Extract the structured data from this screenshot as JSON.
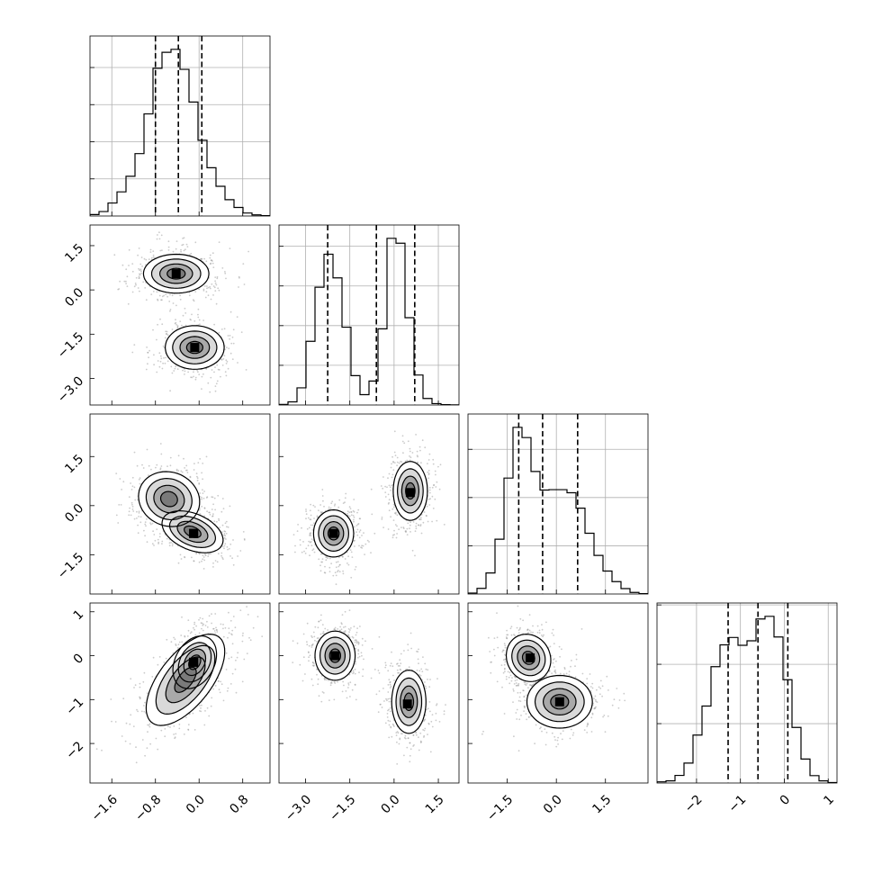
{
  "chart_data": {
    "type": "corner",
    "n_params": 4,
    "quantiles_shown": [
      0.16,
      0.5,
      0.84
    ],
    "grid": true,
    "params": [
      {
        "index": 0,
        "range": [
          -2.0,
          1.3
        ],
        "ticks": [
          -1.6,
          -0.8,
          0.0,
          0.8
        ],
        "tick_labels": [
          "−1.6",
          "−0.8",
          "0.0",
          "0.8"
        ],
        "quantiles": [
          -0.8,
          -0.38,
          0.05
        ],
        "hist_counts": [
          0.4,
          1.2,
          3.5,
          6.5,
          10.7,
          16.8,
          27.5,
          39.8,
          44.1,
          44.9,
          39.5,
          30.7,
          20.4,
          13.0,
          8.0,
          4.4,
          2.3,
          0.8,
          0.3,
          0.1
        ]
      },
      {
        "index": 1,
        "range": [
          -3.9,
          2.2
        ],
        "ticks": [
          -3.0,
          -1.5,
          0.0,
          1.5
        ],
        "tick_labels": [
          "−3.0",
          "−1.5",
          "0.0",
          "1.5"
        ],
        "quantiles": [
          -2.25,
          -0.6,
          0.7
        ],
        "hist_counts": [
          0.4,
          2.0,
          10.8,
          40.1,
          74.2,
          95.0,
          80.1,
          49.0,
          18.5,
          6.5,
          15.1,
          48.0,
          105.0,
          101.9,
          55.0,
          18.9,
          4.1,
          0.9,
          0.2,
          0.1
        ]
      },
      {
        "index": 2,
        "range": [
          -2.7,
          2.8
        ],
        "ticks": [
          -1.5,
          0.0,
          1.5
        ],
        "tick_labels": [
          "−1.5",
          "0.0",
          "1.5"
        ],
        "quantiles": [
          -1.15,
          -0.42,
          0.65
        ],
        "hist_counts": [
          0.5,
          2.9,
          10.9,
          28.4,
          60.1,
          86.4,
          81.1,
          63.5,
          53.9,
          54.1,
          54.1,
          52.5,
          44.5,
          31.5,
          20.0,
          11.9,
          6.4,
          2.8,
          0.8,
          0.2
        ]
      },
      {
        "index": 3,
        "range": [
          -2.9,
          1.2
        ],
        "ticks": [
          -2,
          -1,
          0,
          1
        ],
        "tick_labels": [
          "−2",
          "−1",
          "0",
          "1"
        ],
        "quantiles": [
          -1.28,
          -0.6,
          0.08
        ],
        "hist_counts": [
          0.5,
          0.9,
          3.2,
          8.4,
          20.2,
          32.4,
          49.0,
          58.2,
          61.3,
          58.0,
          59.9,
          69.1,
          70.2,
          61.5,
          43.5,
          23.4,
          10.1,
          3.1,
          0.9,
          0.2
        ]
      }
    ],
    "blobs": {
      "1-0": [
        {
          "mx": -0.42,
          "my": 0.55,
          "sx": 0.3,
          "sy": 0.33,
          "rho": 0.0,
          "w": 1.0,
          "peak": [
            -0.42,
            0.55
          ]
        },
        {
          "mx": -0.08,
          "my": -1.95,
          "sx": 0.27,
          "sy": 0.37,
          "rho": 0.0,
          "w": 1.0,
          "peak": [
            -0.08,
            -1.95
          ]
        }
      ],
      "2-0": [
        {
          "mx": -0.55,
          "my": 0.2,
          "sx": 0.28,
          "sy": 0.42,
          "rho": -0.1,
          "w": 0.9,
          "peak": [
            -0.1,
            -0.85
          ]
        },
        {
          "mx": -0.12,
          "my": -0.8,
          "sx": 0.28,
          "sy": 0.32,
          "rho": -0.4,
          "w": 1.0,
          "peak": [
            -0.1,
            -0.85
          ]
        }
      ],
      "2-1": [
        {
          "mx": -2.05,
          "my": -0.85,
          "sx": 0.34,
          "sy": 0.36,
          "rho": 0.0,
          "w": 1.0,
          "peak": [
            -2.05,
            -0.85
          ]
        },
        {
          "mx": 0.55,
          "my": 0.45,
          "sx": 0.29,
          "sy": 0.45,
          "rho": 0.0,
          "w": 1.0,
          "peak": [
            0.55,
            0.4
          ]
        }
      ],
      "3-0": [
        {
          "mx": -0.25,
          "my": -0.55,
          "sx": 0.36,
          "sy": 0.52,
          "rho": 0.62,
          "w": 1.0,
          "peak": [
            -0.1,
            -0.15
          ]
        },
        {
          "mx": -0.08,
          "my": -0.15,
          "sx": 0.2,
          "sy": 0.3,
          "rho": 0.3,
          "w": 0.6,
          "peak": [
            -0.1,
            -0.15
          ]
        }
      ],
      "3-1": [
        {
          "mx": -2.0,
          "my": 0.0,
          "sx": 0.34,
          "sy": 0.28,
          "rho": 0.0,
          "w": 1.0,
          "peak": [
            -2.0,
            0.0
          ]
        },
        {
          "mx": 0.5,
          "my": -1.05,
          "sx": 0.29,
          "sy": 0.36,
          "rho": 0.0,
          "w": 1.0,
          "peak": [
            0.45,
            -1.1
          ]
        }
      ],
      "3-2": [
        {
          "mx": -0.85,
          "my": -0.05,
          "sx": 0.34,
          "sy": 0.27,
          "rho": -0.1,
          "w": 1.0,
          "peak": [
            -0.8,
            -0.05
          ]
        },
        {
          "mx": 0.1,
          "my": -1.05,
          "sx": 0.5,
          "sy": 0.3,
          "rho": 0.0,
          "w": 0.8,
          "peak": [
            0.1,
            -1.05
          ]
        }
      ]
    }
  }
}
